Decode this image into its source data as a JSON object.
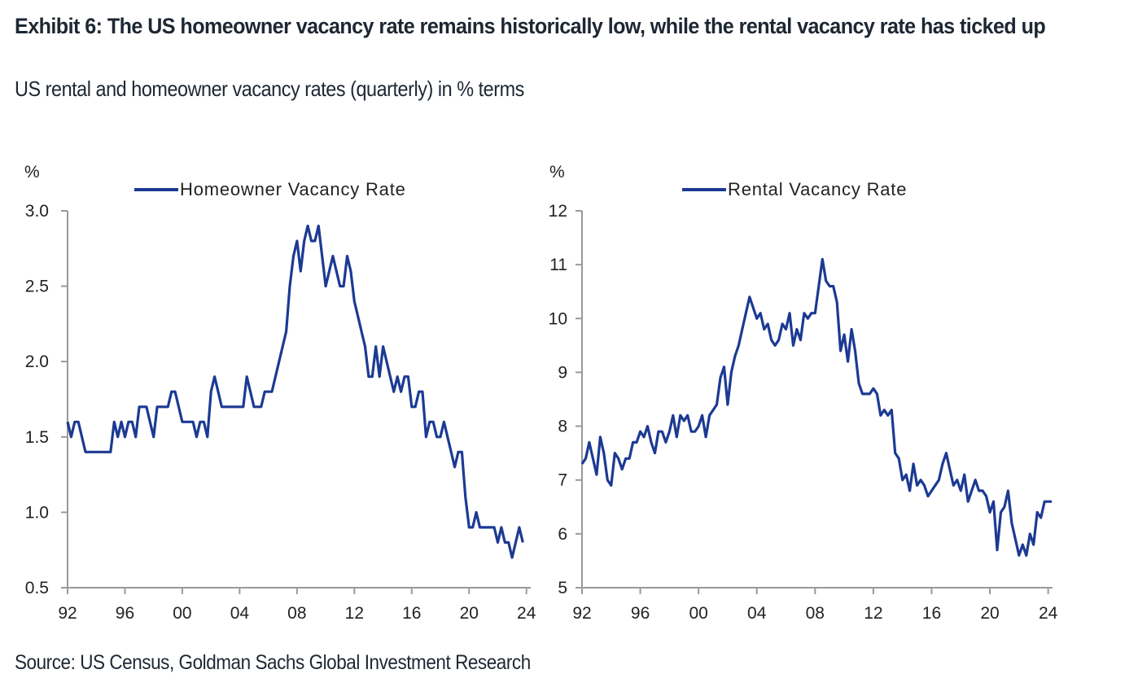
{
  "title": "Exhibit 6: The US homeowner vacancy rate remains historically low, while the rental vacancy rate has ticked up",
  "subtitle": "US rental and homeowner vacancy rates (quarterly) in % terms",
  "source": "Source: US Census, Goldman Sachs Global Investment Research",
  "colors": {
    "line": "#1c3a93",
    "axis": "#9a9a9a",
    "text": "#1d2733"
  },
  "chart_data": [
    {
      "type": "line",
      "title": "",
      "ylabel": "%",
      "xlabel": "",
      "legend": "Homeowner Vacancy Rate",
      "legend_position": "top-center",
      "grid": false,
      "ylim": [
        0.5,
        3.0
      ],
      "yticks": [
        0.5,
        1.0,
        1.5,
        2.0,
        2.5,
        3.0
      ],
      "ytick_labels": [
        "0.5",
        "1.0",
        "1.5",
        "2.0",
        "2.5",
        "3.0"
      ],
      "xlim": [
        1992,
        2024.3
      ],
      "xticks": [
        1992,
        1996,
        2000,
        2004,
        2008,
        2012,
        2016,
        2020,
        2024
      ],
      "xtick_labels": [
        "92",
        "96",
        "00",
        "04",
        "08",
        "12",
        "16",
        "20",
        "24"
      ],
      "x_start": 1992.0,
      "x_step": 0.25,
      "series": [
        {
          "name": "Homeowner Vacancy Rate",
          "values": [
            1.6,
            1.5,
            1.6,
            1.6,
            1.5,
            1.4,
            1.4,
            1.4,
            1.4,
            1.4,
            1.4,
            1.4,
            1.4,
            1.6,
            1.5,
            1.6,
            1.5,
            1.6,
            1.6,
            1.5,
            1.7,
            1.7,
            1.7,
            1.6,
            1.5,
            1.7,
            1.7,
            1.7,
            1.7,
            1.8,
            1.8,
            1.7,
            1.6,
            1.6,
            1.6,
            1.6,
            1.5,
            1.6,
            1.6,
            1.5,
            1.8,
            1.9,
            1.8,
            1.7,
            1.7,
            1.7,
            1.7,
            1.7,
            1.7,
            1.7,
            1.9,
            1.8,
            1.7,
            1.7,
            1.7,
            1.8,
            1.8,
            1.8,
            1.9,
            2.0,
            2.1,
            2.2,
            2.5,
            2.7,
            2.8,
            2.6,
            2.8,
            2.9,
            2.8,
            2.8,
            2.9,
            2.7,
            2.5,
            2.6,
            2.7,
            2.6,
            2.5,
            2.5,
            2.7,
            2.6,
            2.4,
            2.3,
            2.2,
            2.1,
            1.9,
            1.9,
            2.1,
            1.9,
            2.1,
            2.0,
            1.9,
            1.8,
            1.9,
            1.8,
            1.9,
            1.9,
            1.7,
            1.7,
            1.8,
            1.8,
            1.5,
            1.6,
            1.6,
            1.5,
            1.5,
            1.6,
            1.5,
            1.4,
            1.3,
            1.4,
            1.4,
            1.1,
            0.9,
            0.9,
            1.0,
            0.9,
            0.9,
            0.9,
            0.9,
            0.9,
            0.8,
            0.9,
            0.8,
            0.8,
            0.7,
            0.8,
            0.9,
            0.8
          ]
        }
      ]
    },
    {
      "type": "line",
      "title": "",
      "ylabel": "%",
      "xlabel": "",
      "legend": "Rental Vacancy Rate",
      "legend_position": "top-center",
      "grid": false,
      "ylim": [
        5,
        12
      ],
      "yticks": [
        5,
        6,
        7,
        8,
        9,
        10,
        11,
        12
      ],
      "ytick_labels": [
        "5",
        "6",
        "7",
        "8",
        "9",
        "10",
        "11",
        "12"
      ],
      "xlim": [
        1992,
        2024.3
      ],
      "xticks": [
        1992,
        1996,
        2000,
        2004,
        2008,
        2012,
        2016,
        2020,
        2024
      ],
      "xtick_labels": [
        "92",
        "96",
        "00",
        "04",
        "08",
        "12",
        "16",
        "20",
        "24"
      ],
      "x_start": 1992.0,
      "x_step": 0.25,
      "series": [
        {
          "name": "Rental Vacancy Rate",
          "values": [
            7.3,
            7.4,
            7.7,
            7.4,
            7.1,
            7.8,
            7.5,
            7.0,
            6.9,
            7.5,
            7.4,
            7.2,
            7.4,
            7.4,
            7.7,
            7.7,
            7.9,
            7.8,
            8.0,
            7.7,
            7.5,
            7.9,
            7.9,
            7.7,
            7.9,
            8.2,
            7.8,
            8.2,
            8.1,
            8.2,
            7.9,
            7.9,
            8.0,
            8.2,
            7.8,
            8.2,
            8.3,
            8.4,
            8.9,
            9.1,
            8.4,
            9.0,
            9.3,
            9.5,
            9.8,
            10.1,
            10.4,
            10.2,
            10.0,
            10.1,
            9.8,
            9.9,
            9.6,
            9.5,
            9.6,
            9.9,
            9.8,
            10.1,
            9.5,
            9.8,
            9.6,
            10.1,
            10.0,
            10.1,
            10.1,
            10.6,
            11.1,
            10.7,
            10.6,
            10.6,
            10.3,
            9.4,
            9.7,
            9.2,
            9.8,
            9.4,
            8.8,
            8.6,
            8.6,
            8.6,
            8.7,
            8.6,
            8.2,
            8.3,
            8.2,
            8.3,
            7.5,
            7.4,
            7.0,
            7.1,
            6.8,
            7.3,
            6.9,
            7.0,
            6.9,
            6.7,
            6.8,
            6.9,
            7.0,
            7.3,
            7.5,
            7.2,
            6.9,
            7.0,
            6.8,
            7.1,
            6.6,
            6.8,
            7.0,
            6.8,
            6.8,
            6.7,
            6.4,
            6.6,
            5.7,
            6.4,
            6.5,
            6.8,
            6.2,
            5.9,
            5.6,
            5.8,
            5.6,
            6.0,
            5.8,
            6.4,
            6.3,
            6.6,
            6.6,
            6.6
          ]
        }
      ]
    }
  ]
}
